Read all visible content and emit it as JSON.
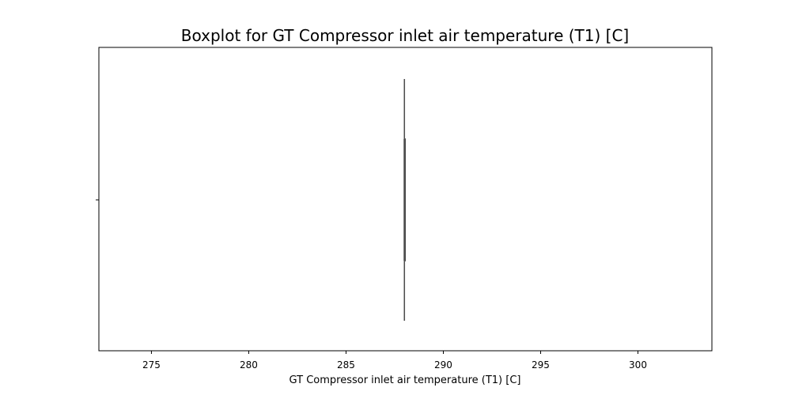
{
  "chart_data": {
    "type": "boxplot",
    "title": "Boxplot for GT Compressor inlet air temperature (T1) [C]",
    "xlabel": "GT Compressor inlet air temperature (T1) [C]",
    "ylabel": "",
    "xlim": [
      272.3,
      303.8
    ],
    "xticks": [
      275,
      280,
      285,
      290,
      295,
      300
    ],
    "xtick_labels": [
      "275",
      "280",
      "285",
      "290",
      "295",
      "300"
    ],
    "orientation": "horizontal",
    "box": {
      "whisker_low": 288.0,
      "q1": 288.0,
      "median": 288.0,
      "q3": 288.0,
      "whisker_high": 288.0
    },
    "grid": false,
    "colors": {
      "box_line": "#4d4d4d",
      "axes": "#000000"
    }
  }
}
